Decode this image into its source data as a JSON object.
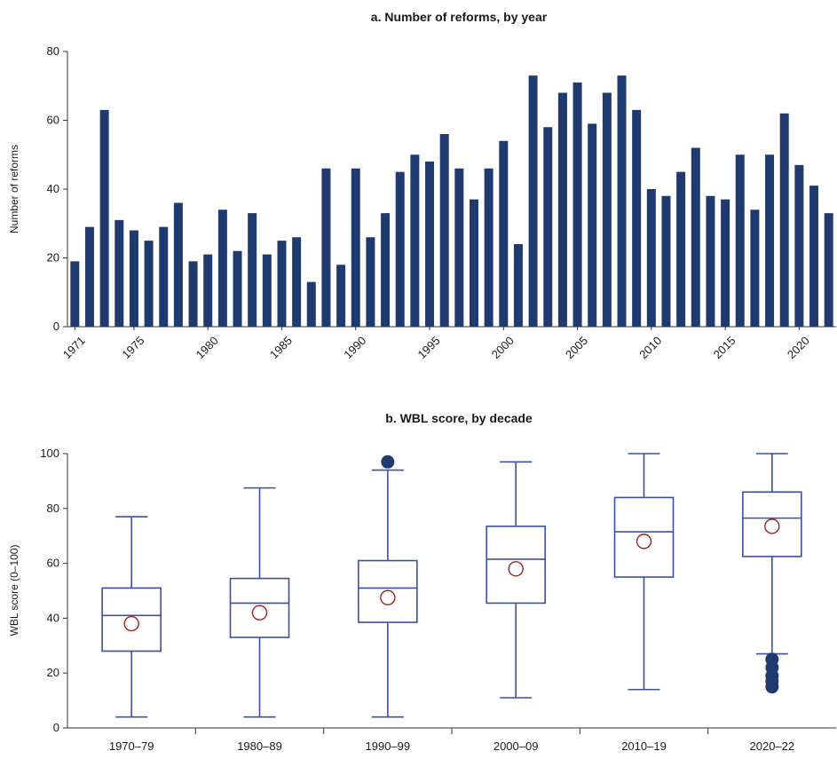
{
  "chart_data": [
    {
      "type": "bar",
      "title": "a. Number of reforms, by year",
      "xlabel": "",
      "ylabel": "Number of reforms",
      "ylim": [
        0,
        80
      ],
      "yticks": [
        0,
        20,
        40,
        60,
        80
      ],
      "color": "#1f3a6e",
      "categories": [
        1971,
        1972,
        1973,
        1974,
        1975,
        1976,
        1977,
        1978,
        1979,
        1980,
        1981,
        1982,
        1983,
        1984,
        1985,
        1986,
        1987,
        1988,
        1989,
        1990,
        1991,
        1992,
        1993,
        1994,
        1995,
        1996,
        1997,
        1998,
        1999,
        2000,
        2001,
        2002,
        2003,
        2004,
        2005,
        2006,
        2007,
        2008,
        2009,
        2010,
        2011,
        2012,
        2013,
        2014,
        2015,
        2016,
        2017,
        2018,
        2019,
        2020,
        2021,
        2022
      ],
      "x_tick_labels": [
        "1971",
        "1975",
        "1980",
        "1985",
        "1990",
        "1995",
        "2000",
        "2005",
        "2010",
        "2015",
        "2020"
      ],
      "values": [
        19,
        29,
        63,
        31,
        28,
        25,
        29,
        36,
        19,
        21,
        34,
        22,
        33,
        21,
        25,
        26,
        13,
        46,
        18,
        46,
        26,
        33,
        45,
        50,
        48,
        56,
        46,
        37,
        46,
        54,
        24,
        73,
        58,
        68,
        71,
        59,
        68,
        73,
        63,
        40,
        38,
        45,
        52,
        38,
        37,
        50,
        34,
        50,
        62,
        47,
        41,
        33
      ]
    },
    {
      "type": "box",
      "title": "b. WBL score, by decade",
      "xlabel": "",
      "ylabel": "WBL score (0–100)",
      "ylim": [
        0,
        100
      ],
      "yticks": [
        0,
        20,
        40,
        60,
        80,
        100
      ],
      "box_color": "#3a4fa6",
      "mean_color": "#a02020",
      "outlier_color": "#1f3a6e",
      "categories": [
        "1970–79",
        "1980–89",
        "1990–99",
        "2000–09",
        "2010–19",
        "2020–22"
      ],
      "boxes": [
        {
          "whisker_low": 4,
          "q1": 28,
          "median": 41,
          "q3": 51,
          "whisker_high": 77,
          "mean": 38,
          "outliers": []
        },
        {
          "whisker_low": 4,
          "q1": 33,
          "median": 45.5,
          "q3": 54.5,
          "whisker_high": 87.5,
          "mean": 42,
          "outliers": []
        },
        {
          "whisker_low": 4,
          "q1": 38.5,
          "median": 51,
          "q3": 61,
          "whisker_high": 94,
          "mean": 47.5,
          "outliers": [
            97
          ]
        },
        {
          "whisker_low": 11,
          "q1": 45.5,
          "median": 61.5,
          "q3": 73.5,
          "whisker_high": 97,
          "mean": 58,
          "outliers": []
        },
        {
          "whisker_low": 14,
          "q1": 55,
          "median": 71.5,
          "q3": 84,
          "whisker_high": 100,
          "mean": 68,
          "outliers": []
        },
        {
          "whisker_low": 27,
          "q1": 62.5,
          "median": 76.5,
          "q3": 86,
          "whisker_high": 100,
          "mean": 73.5,
          "outliers": [
            25,
            22,
            19,
            17,
            15
          ]
        }
      ]
    }
  ]
}
